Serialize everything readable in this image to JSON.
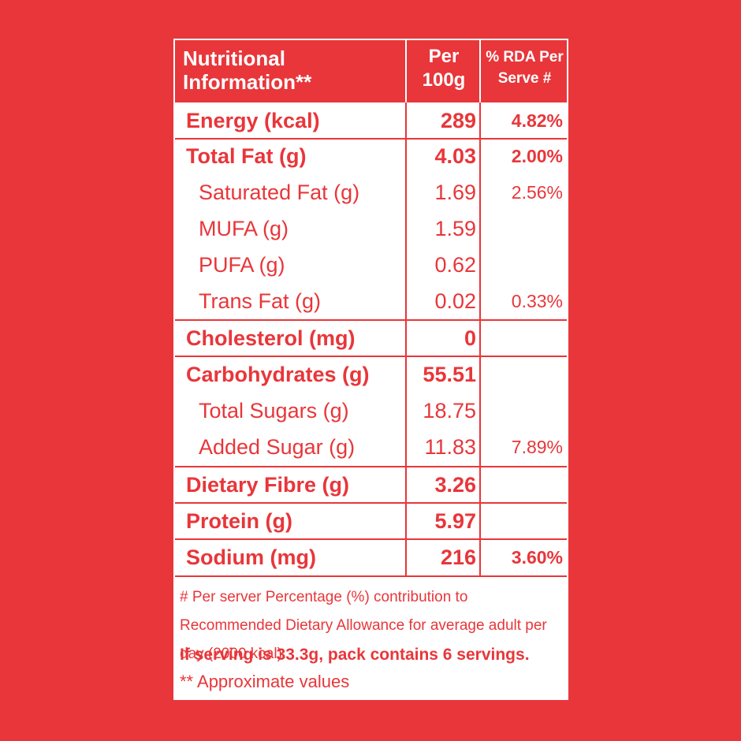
{
  "header": {
    "title_line1": "Nutritional",
    "title_line2": "Information**",
    "per_line1": "Per",
    "per_line2": "100g",
    "rda_line1": "% RDA Per",
    "rda_line2": "Serve #"
  },
  "rows": [
    {
      "label": "Energy (kcal)",
      "per100g": "289",
      "rda": "4.82%"
    },
    {
      "label": "Total Fat (g)",
      "per100g": "4.03",
      "rda": "2.00%"
    },
    {
      "label": "Saturated Fat (g)",
      "per100g": "1.69",
      "rda": "2.56%"
    },
    {
      "label": "MUFA (g)",
      "per100g": "1.59",
      "rda": ""
    },
    {
      "label": "PUFA (g)",
      "per100g": "0.62",
      "rda": ""
    },
    {
      "label": "Trans Fat (g)",
      "per100g": "0.02",
      "rda": "0.33%"
    },
    {
      "label": "Cholesterol (mg)",
      "per100g": "0",
      "rda": ""
    },
    {
      "label": "Carbohydrates (g)",
      "per100g": "55.51",
      "rda": ""
    },
    {
      "label": "Total Sugars (g)",
      "per100g": "18.75",
      "rda": ""
    },
    {
      "label": "Added Sugar (g)",
      "per100g": "11.83",
      "rda": "7.89%"
    },
    {
      "label": "Dietary Fibre (g)",
      "per100g": "3.26",
      "rda": ""
    },
    {
      "label": "Protein (g)",
      "per100g": "5.97",
      "rda": ""
    },
    {
      "label": "Sodium (mg)",
      "per100g": "216",
      "rda": "3.60%"
    }
  ],
  "footer": {
    "rda_note": "# Per server Percentage (%) contribution to Recommended Dietary Allowance for average adult per day (2000 kcal).",
    "serving_note": "If serving is 33.3g, pack contains 6 servings.",
    "approx_note": "** Approximate values"
  },
  "colors": {
    "brand_red": "#e8363a",
    "panel_white": "#ffffff"
  }
}
